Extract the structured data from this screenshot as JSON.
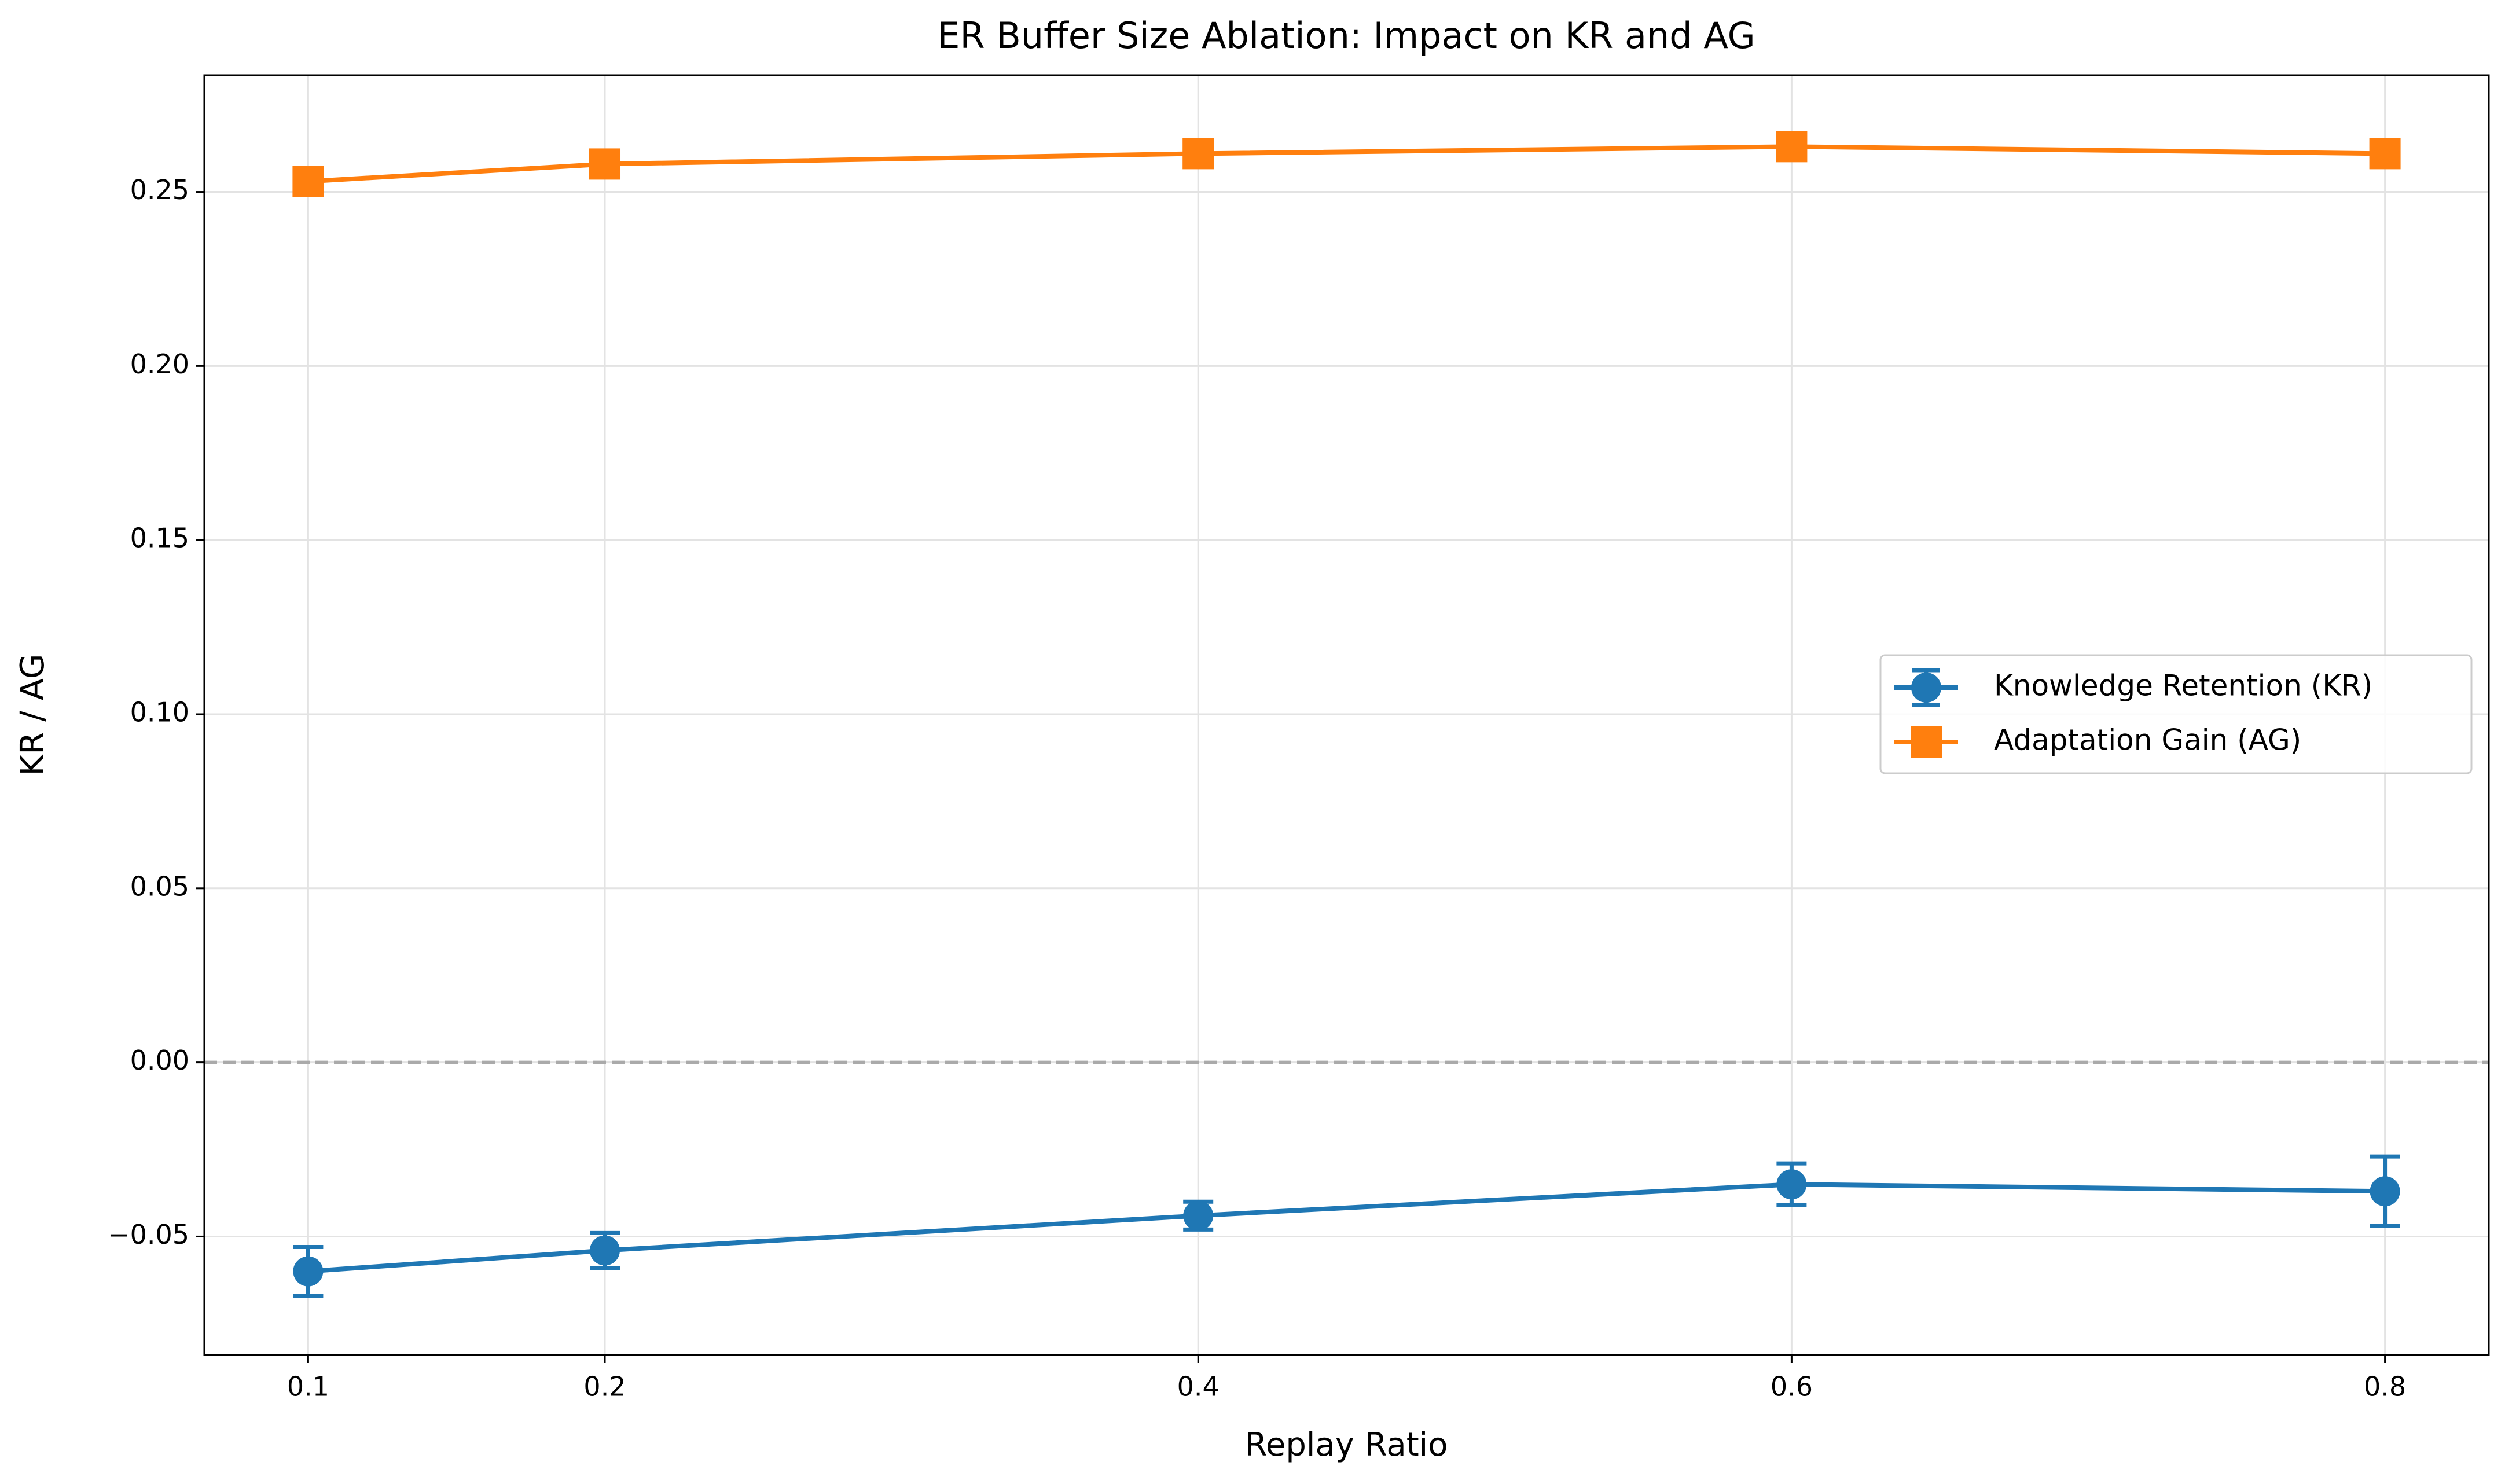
{
  "chart_data": {
    "type": "line",
    "title": "ER Buffer Size Ablation: Impact on KR and AG",
    "xlabel": "Replay Ratio",
    "ylabel": "KR / AG",
    "x": [
      0.1,
      0.2,
      0.4,
      0.6,
      0.8
    ],
    "series": [
      {
        "name": "Knowledge Retention (KR)",
        "color": "#1f77b4",
        "marker": "circle",
        "values": [
          -0.06,
          -0.054,
          -0.044,
          -0.035,
          -0.037
        ],
        "errors": [
          0.007,
          0.005,
          0.004,
          0.006,
          0.01
        ]
      },
      {
        "name": "Adaptation Gain (AG)",
        "color": "#ff7f0e",
        "marker": "square",
        "values": [
          0.253,
          0.258,
          0.261,
          0.263,
          0.261
        ]
      }
    ],
    "xlim": [
      0.065,
      0.835
    ],
    "ylim": [
      -0.084,
      0.2835
    ],
    "xticks": [
      0.1,
      0.2,
      0.4,
      0.6,
      0.8
    ],
    "yticks": [
      {
        "value": -0.05,
        "label": "−0.05"
      },
      {
        "value": 0,
        "label": "0.00"
      },
      {
        "value": 0.05,
        "label": "0.05"
      },
      {
        "value": 0.1,
        "label": "0.10"
      },
      {
        "value": 0.15,
        "label": "0.15"
      },
      {
        "value": 0.2,
        "label": "0.20"
      },
      {
        "value": 0.25,
        "label": "0.25"
      }
    ],
    "hline": 0,
    "grid": true,
    "legend": "right"
  }
}
